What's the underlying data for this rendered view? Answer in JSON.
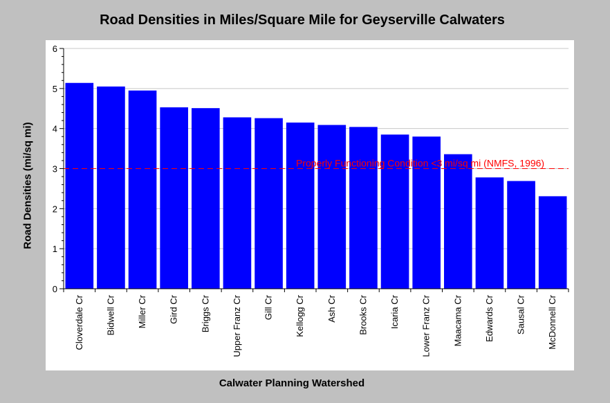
{
  "chart_data": {
    "type": "bar",
    "title": "Road Densities in Miles/Square Mile for Geyserville Calwaters",
    "xlabel": "Calwater Planning Watershed",
    "ylabel": "Road Densities (mi/sq mi)",
    "ylim": [
      0,
      6
    ],
    "yticks": [
      0,
      1,
      2,
      3,
      4,
      5,
      6
    ],
    "grid": true,
    "bar_color": "#0000ff",
    "categories": [
      "Cloverdale Cr",
      "Bidwell Cr",
      "Miller Cr",
      "Gird Cr",
      "Briggs Cr",
      "Upper Franz Cr",
      "Gill Cr",
      "Kellogg Cr",
      "Ash Cr",
      "Brooks Cr",
      "Icaria Cr",
      "Lower Franz Cr",
      "Maacama Cr",
      "Edwards Cr",
      "Sausal Cr",
      "McDonnell Cr"
    ],
    "values": [
      5.14,
      5.05,
      4.95,
      4.53,
      4.51,
      4.28,
      4.26,
      4.15,
      4.09,
      4.04,
      3.85,
      3.8,
      3.36,
      2.78,
      2.69,
      2.31
    ],
    "reference_line": {
      "value": 3,
      "label": "Properly Functioning Condition <3 mi/sq mi (NMFS, 1996)",
      "color": "#ff0000",
      "style": "dashed"
    }
  }
}
